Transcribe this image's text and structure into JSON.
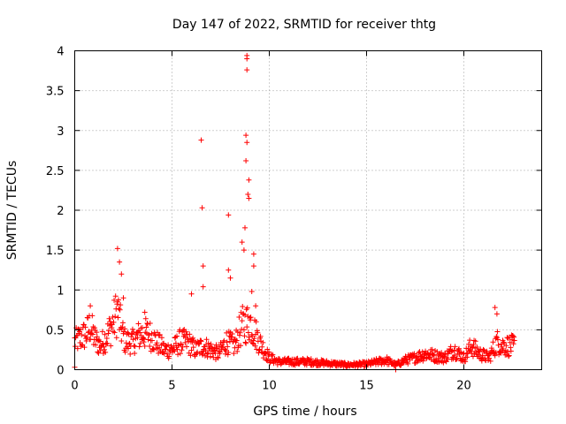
{
  "chart_data": {
    "type": "scatter",
    "title": "Day 147 of 2022, SRMTID for receiver thtg",
    "xlabel": "GPS time / hours",
    "ylabel": "SRMTID / TECUs",
    "xlim": [
      0,
      24
    ],
    "ylim": [
      0,
      4
    ],
    "xticks": [
      0,
      5,
      10,
      15,
      20
    ],
    "xtick_labels": [
      "0",
      "5",
      "10",
      "15",
      "20"
    ],
    "yticks": [
      0,
      0.5,
      1,
      1.5,
      2,
      2.5,
      3,
      3.5,
      4
    ],
    "ytick_labels": [
      "0",
      "0.5",
      "1",
      "1.5",
      "2",
      "2.5",
      "3",
      "3.5",
      "4"
    ],
    "grid": true,
    "marker": "+",
    "color": "#ff0000",
    "series": [
      {
        "name": "SRMTID",
        "profile": [
          [
            0.0,
            0.35
          ],
          [
            0.3,
            0.4
          ],
          [
            0.6,
            0.45
          ],
          [
            0.8,
            0.55
          ],
          [
            1.0,
            0.4
          ],
          [
            1.3,
            0.3
          ],
          [
            1.6,
            0.4
          ],
          [
            1.8,
            0.5
          ],
          [
            2.0,
            0.6
          ],
          [
            2.2,
            0.75
          ],
          [
            2.4,
            0.5
          ],
          [
            2.6,
            0.35
          ],
          [
            3.0,
            0.35
          ],
          [
            3.4,
            0.45
          ],
          [
            3.8,
            0.45
          ],
          [
            4.2,
            0.35
          ],
          [
            4.6,
            0.25
          ],
          [
            5.0,
            0.25
          ],
          [
            5.4,
            0.35
          ],
          [
            5.8,
            0.35
          ],
          [
            6.2,
            0.25
          ],
          [
            6.6,
            0.3
          ],
          [
            7.0,
            0.25
          ],
          [
            7.4,
            0.2
          ],
          [
            7.8,
            0.35
          ],
          [
            8.2,
            0.3
          ],
          [
            8.6,
            0.55
          ],
          [
            9.0,
            0.6
          ],
          [
            9.3,
            0.45
          ],
          [
            9.6,
            0.3
          ],
          [
            10.0,
            0.15
          ],
          [
            10.5,
            0.1
          ],
          [
            11.0,
            0.1
          ],
          [
            12.0,
            0.1
          ],
          [
            13.0,
            0.08
          ],
          [
            14.0,
            0.06
          ],
          [
            15.0,
            0.07
          ],
          [
            16.0,
            0.12
          ],
          [
            16.5,
            0.06
          ],
          [
            17.0,
            0.12
          ],
          [
            17.5,
            0.15
          ],
          [
            18.0,
            0.2
          ],
          [
            19.0,
            0.15
          ],
          [
            19.5,
            0.25
          ],
          [
            20.0,
            0.15
          ],
          [
            20.4,
            0.3
          ],
          [
            20.8,
            0.2
          ],
          [
            21.3,
            0.15
          ],
          [
            21.7,
            0.35
          ],
          [
            22.0,
            0.3
          ],
          [
            22.3,
            0.3
          ],
          [
            22.6,
            0.3
          ]
        ],
        "spikes": [
          [
            0.0,
            0.03
          ],
          [
            0.8,
            0.8
          ],
          [
            2.2,
            1.52
          ],
          [
            2.3,
            1.35
          ],
          [
            2.4,
            1.2
          ],
          [
            2.5,
            0.9
          ],
          [
            3.6,
            0.72
          ],
          [
            6.0,
            0.95
          ],
          [
            6.5,
            2.88
          ],
          [
            6.55,
            2.03
          ],
          [
            6.6,
            1.3
          ],
          [
            6.6,
            1.04
          ],
          [
            7.9,
            1.94
          ],
          [
            7.9,
            1.25
          ],
          [
            8.0,
            1.15
          ],
          [
            8.85,
            3.94
          ],
          [
            8.85,
            3.9
          ],
          [
            8.85,
            3.76
          ],
          [
            8.8,
            2.94
          ],
          [
            8.85,
            2.85
          ],
          [
            8.8,
            2.62
          ],
          [
            8.95,
            2.38
          ],
          [
            8.9,
            2.2
          ],
          [
            8.95,
            2.15
          ],
          [
            8.75,
            1.78
          ],
          [
            8.6,
            1.6
          ],
          [
            8.7,
            1.5
          ],
          [
            9.2,
            1.45
          ],
          [
            9.2,
            1.3
          ],
          [
            9.1,
            0.98
          ],
          [
            9.3,
            0.8
          ],
          [
            16.5,
            0.0
          ],
          [
            21.6,
            0.78
          ],
          [
            21.7,
            0.7
          ]
        ]
      }
    ]
  }
}
